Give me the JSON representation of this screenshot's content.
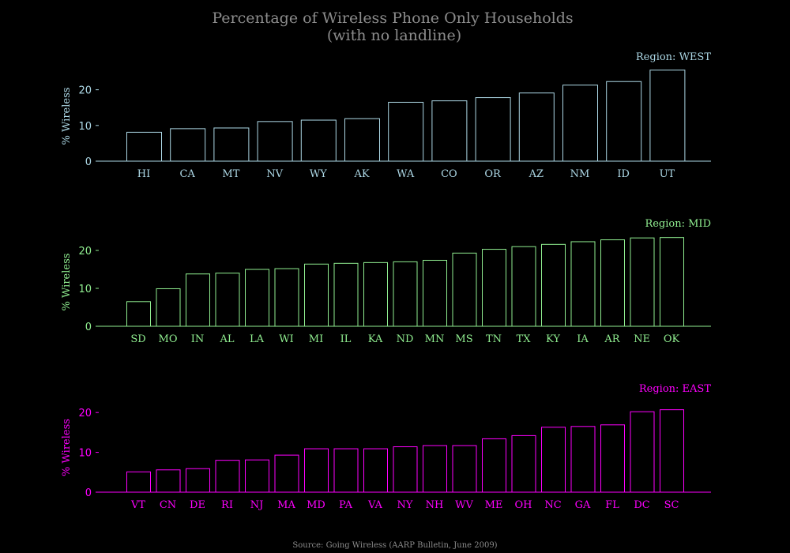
{
  "title_line1": "Percentage of Wireless Phone Only Households",
  "title_line2": "(with no landline)",
  "source": "Source: Going Wireless (AARP Bulletin, June 2009)",
  "chart_data": [
    {
      "type": "bar",
      "region_label": "Region: WEST",
      "ylabel": "% Wireless",
      "color": "#add8e6",
      "ylim": [
        0,
        27
      ],
      "yticks": [
        0,
        10,
        20
      ],
      "categories": [
        "HI",
        "CA",
        "MT",
        "NV",
        "WY",
        "AK",
        "WA",
        "CO",
        "OR",
        "AZ",
        "NM",
        "ID",
        "UT"
      ],
      "values": [
        8.1,
        9.1,
        9.3,
        11.1,
        11.5,
        11.9,
        16.5,
        16.9,
        17.8,
        19.1,
        21.3,
        22.3,
        25.5
      ]
    },
    {
      "type": "bar",
      "region_label": "Region: MID",
      "ylabel": "% Wireless",
      "color": "#90ee90",
      "ylim": [
        0,
        25
      ],
      "yticks": [
        0,
        10,
        20
      ],
      "categories": [
        "SD",
        "MO",
        "IN",
        "AL",
        "LA",
        "WI",
        "MI",
        "IL",
        "KA",
        "ND",
        "MN",
        "MS",
        "TN",
        "TX",
        "KY",
        "IA",
        "AR",
        "NE",
        "OK"
      ],
      "values": [
        6.5,
        9.9,
        13.8,
        14.0,
        15.0,
        15.2,
        16.4,
        16.6,
        16.8,
        17.0,
        17.4,
        19.3,
        20.3,
        21.0,
        21.6,
        22.3,
        22.8,
        23.3,
        23.4
      ]
    },
    {
      "type": "bar",
      "region_label": "Region: EAST",
      "ylabel": "% Wireless",
      "color": "#ff00ff",
      "ylim": [
        0,
        24
      ],
      "yticks": [
        0,
        10,
        20
      ],
      "categories": [
        "VT",
        "CN",
        "DE",
        "RI",
        "NJ",
        "MA",
        "MD",
        "PA",
        "VA",
        "NY",
        "NH",
        "WV",
        "ME",
        "OH",
        "NC",
        "GA",
        "FL",
        "DC",
        "SC"
      ],
      "values": [
        5.1,
        5.6,
        5.9,
        8.0,
        8.1,
        9.3,
        10.9,
        10.9,
        10.9,
        11.4,
        11.7,
        11.7,
        13.4,
        14.2,
        16.3,
        16.5,
        16.9,
        20.2,
        20.7
      ]
    }
  ]
}
